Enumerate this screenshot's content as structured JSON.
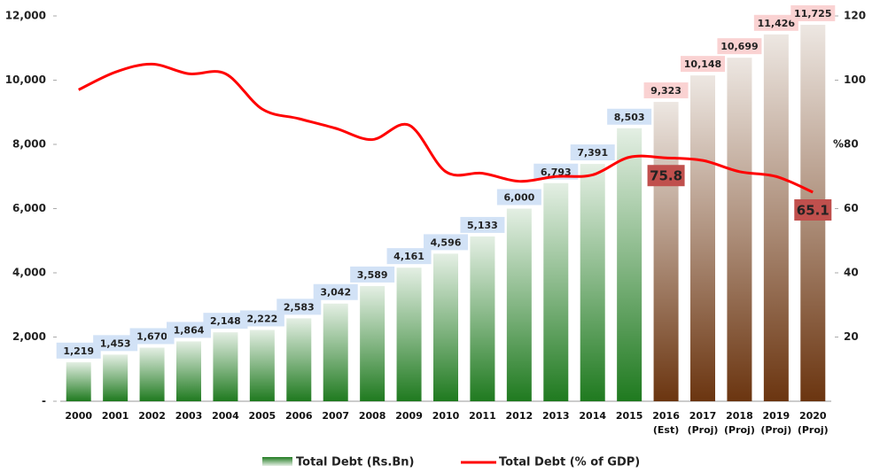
{
  "chart_data": {
    "type": "bar-line",
    "categories": [
      "2000",
      "2001",
      "2002",
      "2003",
      "2004",
      "2005",
      "2006",
      "2007",
      "2008",
      "2009",
      "2010",
      "2011",
      "2012",
      "2013",
      "2014",
      "2015",
      "2016 (Est)",
      "2017 (Proj)",
      "2018 (Proj)",
      "2019 (Proj)",
      "2020 (Proj)"
    ],
    "series": [
      {
        "name": "Total Debt (Rs.Bn)",
        "type": "bar",
        "values": [
          1219,
          1453,
          1670,
          1864,
          2148,
          2222,
          2583,
          3042,
          3589,
          4161,
          4596,
          5133,
          6000,
          6793,
          7391,
          8503,
          9323,
          10148,
          10699,
          11426,
          11725
        ],
        "value_labels": [
          "1,219",
          "1,453",
          "1,670",
          "1,864",
          "2,148",
          "2,222",
          "2,583",
          "3,042",
          "3,589",
          "4,161",
          "4,596",
          "5,133",
          "6,000",
          "6,793",
          "7,391",
          "8,503",
          "9,323",
          "10,148",
          "10,699",
          "11,426",
          "11,725"
        ],
        "colors": [
          "#1f7a1f",
          "#1f7a1f",
          "#1f7a1f",
          "#1f7a1f",
          "#1f7a1f",
          "#1f7a1f",
          "#1f7a1f",
          "#1f7a1f",
          "#1f7a1f",
          "#1f7a1f",
          "#1f7a1f",
          "#1f7a1f",
          "#1f7a1f",
          "#1f7a1f",
          "#1f7a1f",
          "#1f7a1f",
          "#6b3510",
          "#6b3510",
          "#6b3510",
          "#6b3510",
          "#6b3510"
        ],
        "label_colors": [
          "#1e6fd0",
          "#1e6fd0",
          "#1e6fd0",
          "#1e6fd0",
          "#1e6fd0",
          "#1e6fd0",
          "#1e6fd0",
          "#1e6fd0",
          "#1e6fd0",
          "#1e6fd0",
          "#1e6fd0",
          "#1e6fd0",
          "#1e6fd0",
          "#1e6fd0",
          "#1e6fd0",
          "#1e6fd0",
          "#e8201e",
          "#e8201e",
          "#e8201e",
          "#e8201e",
          "#e8201e"
        ]
      },
      {
        "name": "Total Debt (% of GDP)",
        "type": "line",
        "axis": "y2",
        "color": "#ff0000",
        "values": [
          97,
          102.5,
          105,
          102,
          102,
          91,
          88,
          85,
          81.5,
          86,
          71.5,
          71,
          68.5,
          70,
          70.5,
          76,
          75.8,
          75,
          71.5,
          70,
          65.1
        ],
        "value_labels": [
          null,
          null,
          null,
          null,
          null,
          null,
          null,
          null,
          null,
          null,
          null,
          null,
          null,
          null,
          null,
          null,
          "75.8",
          null,
          null,
          null,
          "65.1"
        ],
        "label_color": "#c0504d"
      }
    ],
    "ylim": [
      0,
      12000
    ],
    "yticks": [
      {
        "value": 0,
        "label": "-"
      },
      {
        "value": 2000,
        "label": "2,000"
      },
      {
        "value": 4000,
        "label": "4,000"
      },
      {
        "value": 6000,
        "label": "6,000"
      },
      {
        "value": 8000,
        "label": "8,000"
      },
      {
        "value": 10000,
        "label": "10,000"
      },
      {
        "value": 12000,
        "label": "12,000"
      }
    ],
    "y2lim": [
      0,
      120
    ],
    "y2ticks": [
      20,
      40,
      60,
      80,
      100,
      120
    ],
    "y2label": "%"
  }
}
